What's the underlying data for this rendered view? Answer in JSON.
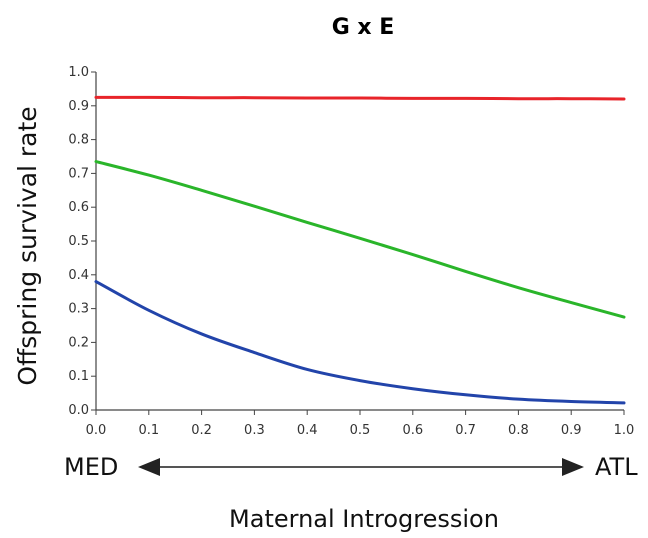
{
  "chart_data": {
    "type": "line",
    "title": "G x E",
    "xlabel": "Maternal Introgression",
    "ylabel": "Offspring survival rate",
    "xlim": [
      0,
      1
    ],
    "ylim": [
      0,
      1
    ],
    "x_ticks": [
      "0.0",
      "0.1",
      "0.2",
      "0.3",
      "0.4",
      "0.5",
      "0.6",
      "0.7",
      "0.8",
      "0.9",
      "1.0"
    ],
    "y_ticks": [
      "0.0",
      "0.1",
      "0.2",
      "0.3",
      "0.4",
      "0.5",
      "0.6",
      "0.7",
      "0.8",
      "0.9",
      "1.0"
    ],
    "x": [
      0.0,
      0.1,
      0.2,
      0.3,
      0.4,
      0.5,
      0.6,
      0.7,
      0.8,
      0.9,
      1.0
    ],
    "series": [
      {
        "color": "#e8242a",
        "values": [
          0.925,
          0.925,
          0.924,
          0.924,
          0.923,
          0.923,
          0.922,
          0.922,
          0.921,
          0.921,
          0.92
        ]
      },
      {
        "color": "#2ab52a",
        "values": [
          0.735,
          0.695,
          0.65,
          0.603,
          0.555,
          0.508,
          0.46,
          0.41,
          0.362,
          0.318,
          0.275
        ]
      },
      {
        "color": "#2244aa",
        "values": [
          0.38,
          0.295,
          0.225,
          0.17,
          0.12,
          0.087,
          0.063,
          0.045,
          0.032,
          0.025,
          0.021
        ]
      }
    ],
    "grid": false,
    "legend": "none",
    "annotations": {
      "left": "MED",
      "right": "ATL"
    }
  }
}
